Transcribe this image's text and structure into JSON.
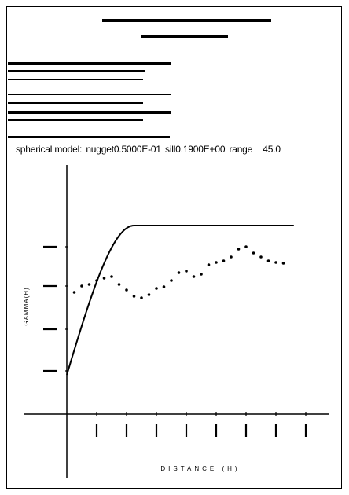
{
  "header": {
    "model_text": "spherical model:",
    "nugget_text": "nugget0.5000E-01",
    "sill_text": "sill0.1900E+00",
    "range_text": "range",
    "range_value": "45.0"
  },
  "chart_data": {
    "type": "scatter",
    "model": "spherical",
    "nugget": 0.05,
    "sill": 0.19,
    "range": 45.0,
    "xlabel": "DISTANCE (H)",
    "ylabel": "GAMMA(H)",
    "x": [
      5,
      10,
      15,
      20,
      25,
      30,
      35,
      40,
      45,
      50,
      55,
      60,
      65,
      70,
      75,
      80,
      85,
      90,
      95,
      100,
      105,
      110,
      115,
      120,
      125,
      130,
      135,
      140,
      145
    ],
    "y": [
      0.155,
      0.163,
      0.165,
      0.17,
      0.173,
      0.175,
      0.165,
      0.158,
      0.15,
      0.148,
      0.152,
      0.16,
      0.162,
      0.17,
      0.18,
      0.182,
      0.175,
      0.178,
      0.19,
      0.193,
      0.195,
      0.2,
      0.21,
      0.213,
      0.205,
      0.2,
      0.195,
      0.193,
      0.192
    ],
    "grid": false
  },
  "colors": {
    "ink": "#000000",
    "background": "#ffffff"
  }
}
